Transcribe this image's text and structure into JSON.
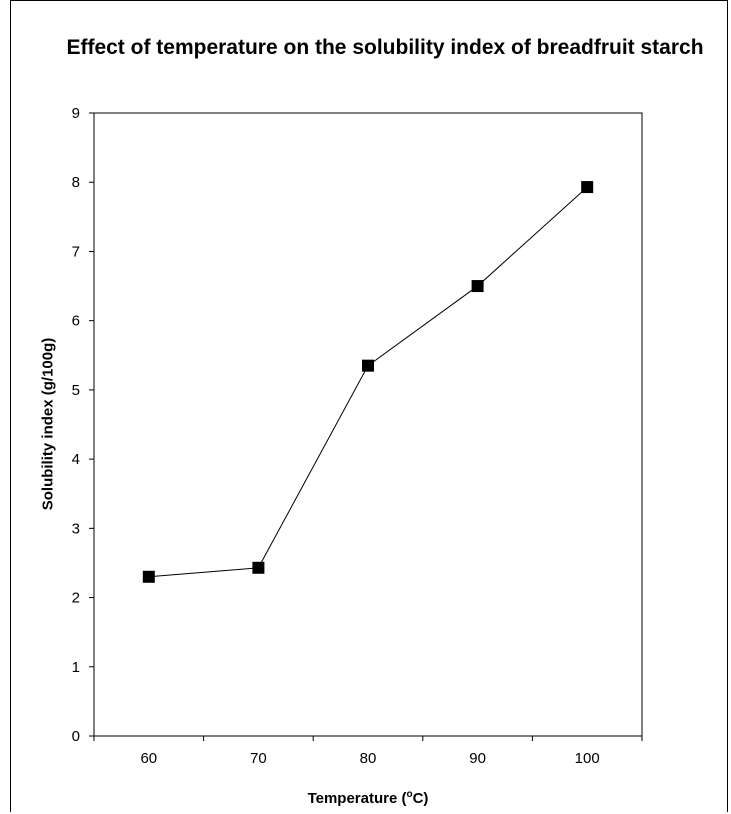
{
  "chart_data": {
    "type": "line",
    "title": "Effect of temperature on the solubility index of breadfruit starch",
    "xlabel_prefix": "Temperature (",
    "xlabel_sup": "o",
    "xlabel_suffix": "C)",
    "ylabel": "Solubility index (g/100g)",
    "x_categories": [
      "60",
      "70",
      "80",
      "90",
      "100"
    ],
    "y_ticks": [
      "0",
      "1",
      "2",
      "3",
      "4",
      "5",
      "6",
      "7",
      "8",
      "9"
    ],
    "ylim": [
      0,
      9
    ],
    "series": [
      {
        "marker": "square",
        "values": [
          2.3,
          2.43,
          5.35,
          6.5,
          7.93
        ]
      }
    ],
    "grid": false,
    "legend": "none",
    "colors": {
      "line": "#000000",
      "marker": "#000000",
      "axis": "#000000"
    }
  }
}
